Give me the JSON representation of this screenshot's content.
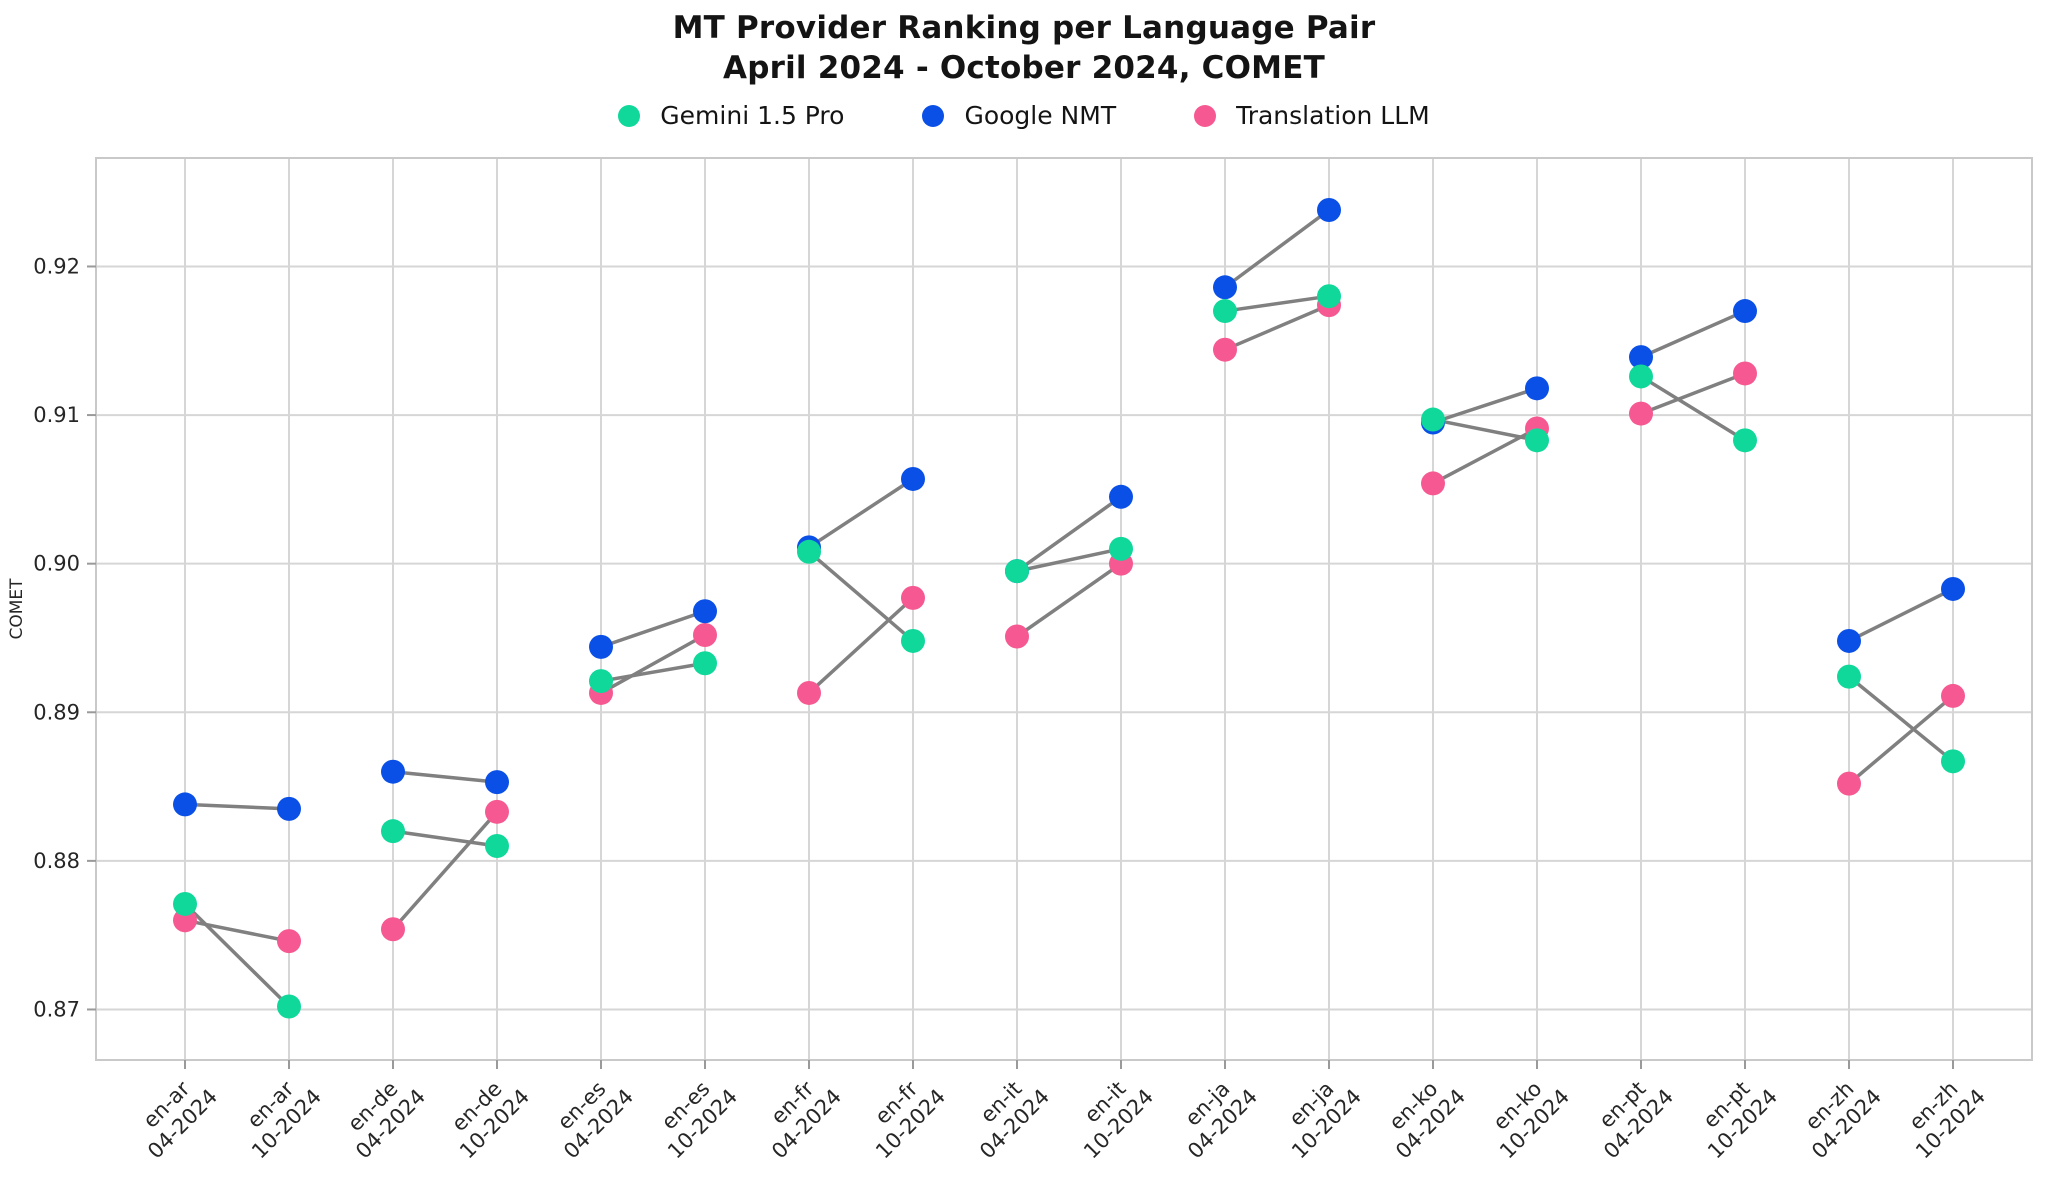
{
  "title": {
    "line1": "MT Provider Ranking per Language Pair",
    "line2": "April 2024 - October 2024, COMET"
  },
  "chart_data": {
    "type": "scatter",
    "title": "MT Provider Ranking per Language Pair",
    "subtitle": "April 2024 - October 2024, COMET",
    "xlabel": "",
    "ylabel": "COMET",
    "ylim": [
      0.8666,
      0.9273
    ],
    "yticks": [
      0.87,
      0.88,
      0.89,
      0.9,
      0.91,
      0.92
    ],
    "grid": true,
    "legend_position": "top",
    "categories": [
      {
        "pair": "en-ar",
        "date": "04-2024"
      },
      {
        "pair": "en-ar",
        "date": "10-2024"
      },
      {
        "pair": "en-de",
        "date": "04-2024"
      },
      {
        "pair": "en-de",
        "date": "10-2024"
      },
      {
        "pair": "en-es",
        "date": "04-2024"
      },
      {
        "pair": "en-es",
        "date": "10-2024"
      },
      {
        "pair": "en-fr",
        "date": "04-2024"
      },
      {
        "pair": "en-fr",
        "date": "10-2024"
      },
      {
        "pair": "en-it",
        "date": "04-2024"
      },
      {
        "pair": "en-it",
        "date": "10-2024"
      },
      {
        "pair": "en-ja",
        "date": "04-2024"
      },
      {
        "pair": "en-ja",
        "date": "10-2024"
      },
      {
        "pair": "en-ko",
        "date": "04-2024"
      },
      {
        "pair": "en-ko",
        "date": "10-2024"
      },
      {
        "pair": "en-pt",
        "date": "04-2024"
      },
      {
        "pair": "en-pt",
        "date": "10-2024"
      },
      {
        "pair": "en-zh",
        "date": "04-2024"
      },
      {
        "pair": "en-zh",
        "date": "10-2024"
      }
    ],
    "series": [
      {
        "name": "Gemini 1.5 Pro",
        "color": "#10d89a",
        "values": [
          0.8771,
          0.8702,
          0.882,
          0.881,
          0.8921,
          0.8933,
          0.9008,
          0.8948,
          0.8995,
          0.901,
          0.917,
          0.918,
          0.9097,
          0.9083,
          0.9126,
          0.9083,
          0.8924,
          0.8867
        ]
      },
      {
        "name": "Google NMT",
        "color": "#0b50e6",
        "values": [
          0.8838,
          0.8835,
          0.886,
          0.8853,
          0.8944,
          0.8968,
          0.9011,
          0.9057,
          0.8995,
          0.9045,
          0.9186,
          0.9238,
          0.9095,
          0.9118,
          0.9139,
          0.917,
          0.8948,
          0.8983
        ]
      },
      {
        "name": "Translation LLM",
        "color": "#f65991",
        "values": [
          0.876,
          0.8746,
          0.8754,
          0.8833,
          0.8913,
          0.8952,
          0.8913,
          0.8977,
          0.8951,
          0.9,
          0.9144,
          0.9174,
          0.9054,
          0.9091,
          0.9101,
          0.9128,
          0.8852,
          0.8911
        ]
      }
    ],
    "connectors": {
      "description": "gray line from 04-2024 point to 10-2024 point of same pair and provider, with perpendicular end bar at destination",
      "color": "#808080"
    },
    "grid_color": "#d6d6d6",
    "spine_color": "#c9c9c9",
    "tick_text_color": "#262626"
  }
}
